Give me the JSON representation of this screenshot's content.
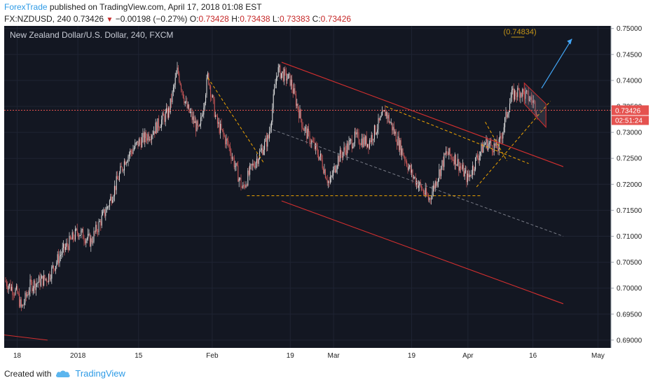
{
  "header": {
    "author": "ForexTrade",
    "published": "published on TradingView.com, April 17, 2018 01:08 EST",
    "symbol": "FX:NZDUSD, 240",
    "last": "0.73426",
    "change": "−0.00198 (−0.27%)",
    "o_label": "O:",
    "o_value": "0.73428",
    "h_label": "H:",
    "h_value": "0.73438",
    "l_label": "L:",
    "l_value": "0.73383",
    "c_label": "C:",
    "c_value": "0.73426"
  },
  "footer": {
    "created_with": "Created with",
    "brand": "TradingView"
  },
  "chart_data": {
    "type": "candlestick",
    "title": "New Zealand Dollar/U.S. Dollar, 240, FXCM",
    "x_axis": {
      "type": "date",
      "min": "2017-12-15",
      "max": "2018-05-04",
      "ticks": [
        {
          "date": "2017-12-18",
          "label": "18"
        },
        {
          "date": "2018-01-01",
          "label": "2018"
        },
        {
          "date": "2018-01-15",
          "label": "15"
        },
        {
          "date": "2018-02-01",
          "label": "Feb"
        },
        {
          "date": "2018-02-19",
          "label": "19"
        },
        {
          "date": "2018-03-01",
          "label": "Mar"
        },
        {
          "date": "2018-03-19",
          "label": "19"
        },
        {
          "date": "2018-04-01",
          "label": "Apr"
        },
        {
          "date": "2018-04-16",
          "label": "16"
        },
        {
          "date": "2018-05-01",
          "label": "May"
        }
      ]
    },
    "y_axis": {
      "min": 0.6885,
      "max": 0.7505,
      "ticks": [
        "0.75000",
        "0.74500",
        "0.74000",
        "0.73500",
        "0.73000",
        "0.72500",
        "0.72000",
        "0.71500",
        "0.71000",
        "0.70500",
        "0.70000",
        "0.69500",
        "0.69000"
      ]
    },
    "close_series": [
      {
        "date": "2017-12-15",
        "value": 0.7015
      },
      {
        "date": "2017-12-18",
        "value": 0.699
      },
      {
        "date": "2017-12-19",
        "value": 0.696
      },
      {
        "date": "2017-12-21",
        "value": 0.7005
      },
      {
        "date": "2017-12-25",
        "value": 0.702
      },
      {
        "date": "2017-12-28",
        "value": 0.7065
      },
      {
        "date": "2018-01-01",
        "value": 0.711
      },
      {
        "date": "2018-01-04",
        "value": 0.709
      },
      {
        "date": "2018-01-08",
        "value": 0.716
      },
      {
        "date": "2018-01-12",
        "value": 0.725
      },
      {
        "date": "2018-01-15",
        "value": 0.728
      },
      {
        "date": "2018-01-18",
        "value": 0.73
      },
      {
        "date": "2018-01-22",
        "value": 0.734
      },
      {
        "date": "2018-01-24",
        "value": 0.742
      },
      {
        "date": "2018-01-26",
        "value": 0.735
      },
      {
        "date": "2018-01-29",
        "value": 0.73
      },
      {
        "date": "2018-01-31",
        "value": 0.741
      },
      {
        "date": "2018-02-02",
        "value": 0.732
      },
      {
        "date": "2018-02-05",
        "value": 0.727
      },
      {
        "date": "2018-02-08",
        "value": 0.719
      },
      {
        "date": "2018-02-10",
        "value": 0.723
      },
      {
        "date": "2018-02-14",
        "value": 0.729
      },
      {
        "date": "2018-02-16",
        "value": 0.742
      },
      {
        "date": "2018-02-19",
        "value": 0.74
      },
      {
        "date": "2018-02-22",
        "value": 0.731
      },
      {
        "date": "2018-02-26",
        "value": 0.725
      },
      {
        "date": "2018-02-28",
        "value": 0.72
      },
      {
        "date": "2018-03-02",
        "value": 0.725
      },
      {
        "date": "2018-03-06",
        "value": 0.729
      },
      {
        "date": "2018-03-09",
        "value": 0.728
      },
      {
        "date": "2018-03-13",
        "value": 0.734
      },
      {
        "date": "2018-03-15",
        "value": 0.73
      },
      {
        "date": "2018-03-19",
        "value": 0.722
      },
      {
        "date": "2018-03-23",
        "value": 0.717
      },
      {
        "date": "2018-03-27",
        "value": 0.726
      },
      {
        "date": "2018-03-29",
        "value": 0.725
      },
      {
        "date": "2018-04-01",
        "value": 0.721
      },
      {
        "date": "2018-04-03",
        "value": 0.725
      },
      {
        "date": "2018-04-05",
        "value": 0.728
      },
      {
        "date": "2018-04-08",
        "value": 0.727
      },
      {
        "date": "2018-04-11",
        "value": 0.737
      },
      {
        "date": "2018-04-13",
        "value": 0.738
      },
      {
        "date": "2018-04-16",
        "value": 0.736
      },
      {
        "date": "2018-04-17",
        "value": 0.73426
      }
    ],
    "current_price_label": "0.73426",
    "countdown_label": "02:51:24",
    "target_label": "(0.74834)",
    "colors": {
      "background": "#131722",
      "candle_up": "#e6e6e6",
      "candle_down": "#d45a5a",
      "channel": "#d32f2f",
      "pattern_dash": "#f0a500",
      "midline_dash": "#787b86",
      "projection": "#42a5f5",
      "price_tag": "#e5524f"
    }
  }
}
